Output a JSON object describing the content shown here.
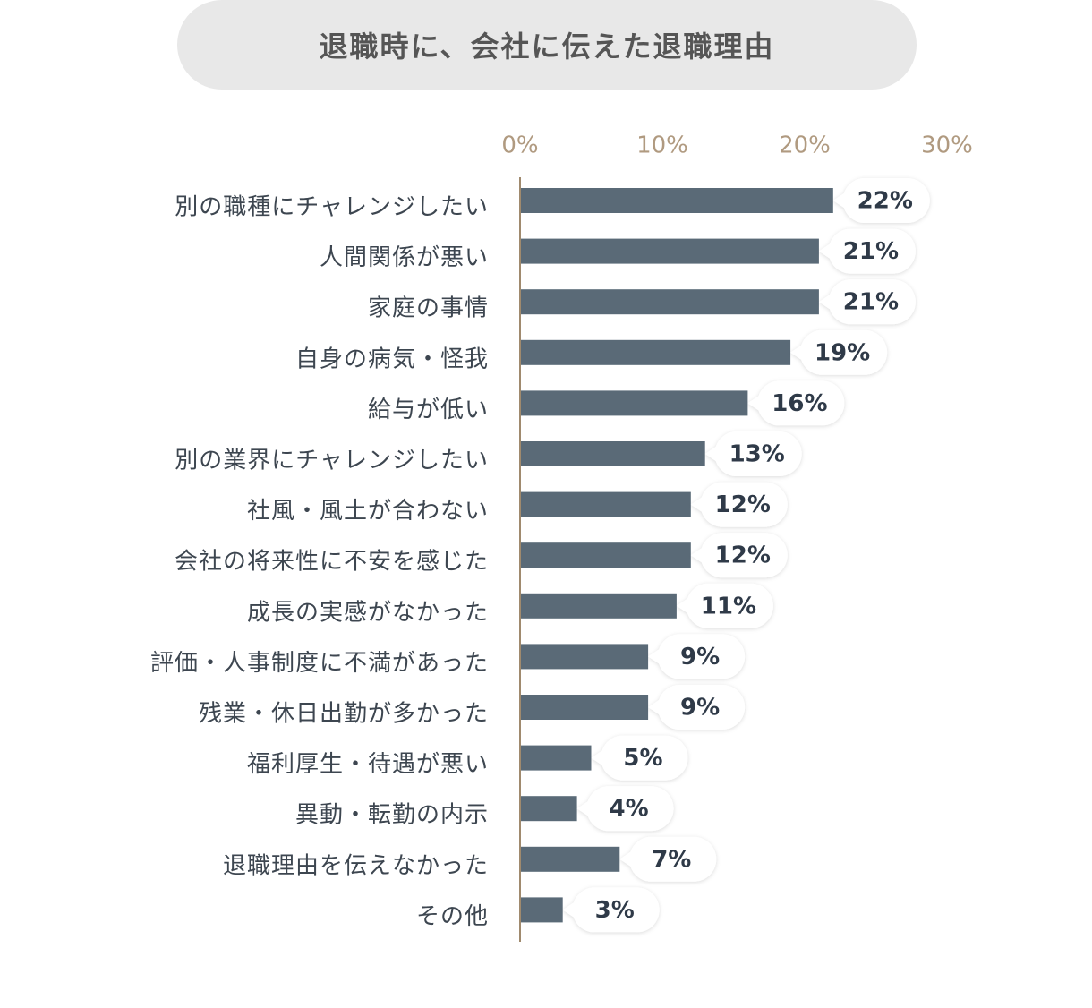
{
  "title": "退職時に、会社に伝えた退職理由",
  "colors": {
    "bar": "#5a6a77",
    "axis_line": "#a08a6e",
    "tick_label": "#b09a80",
    "category_label": "#3d4650",
    "value_label": "#2f3a48",
    "bubble_bg": "#ffffff",
    "title_bg": "#e8e8e8",
    "title_text": "#555555"
  },
  "chart_data": {
    "type": "bar",
    "orientation": "horizontal",
    "title": "退職時に、会社に伝えた退職理由",
    "xlim": [
      0,
      30
    ],
    "ticks": [
      {
        "value": 0,
        "label": "0%"
      },
      {
        "value": 10,
        "label": "10%"
      },
      {
        "value": 20,
        "label": "20%"
      },
      {
        "value": 30,
        "label": "30%"
      }
    ],
    "grid": false,
    "axis_position": "top",
    "categories": [
      "別の職種にチャレンジしたい",
      "人間関係が悪い",
      "家庭の事情",
      "自身の病気・怪我",
      "給与が低い",
      "別の業界にチャレンジしたい",
      "社風・風土が合わない",
      "会社の将来性に不安を感じた",
      "成長の実感がなかった",
      "評価・人事制度に不満があった",
      "残業・休日出勤が多かった",
      "福利厚生・待遇が悪い",
      "異動・転勤の内示",
      "退職理由を伝えなかった",
      "その他"
    ],
    "values": [
      22,
      21,
      21,
      19,
      16,
      13,
      12,
      12,
      11,
      9,
      9,
      5,
      4,
      7,
      3
    ],
    "value_labels": [
      "22%",
      "21%",
      "21%",
      "19%",
      "16%",
      "13%",
      "12%",
      "12%",
      "11%",
      "9%",
      "9%",
      "5%",
      "4%",
      "7%",
      "3%"
    ]
  }
}
